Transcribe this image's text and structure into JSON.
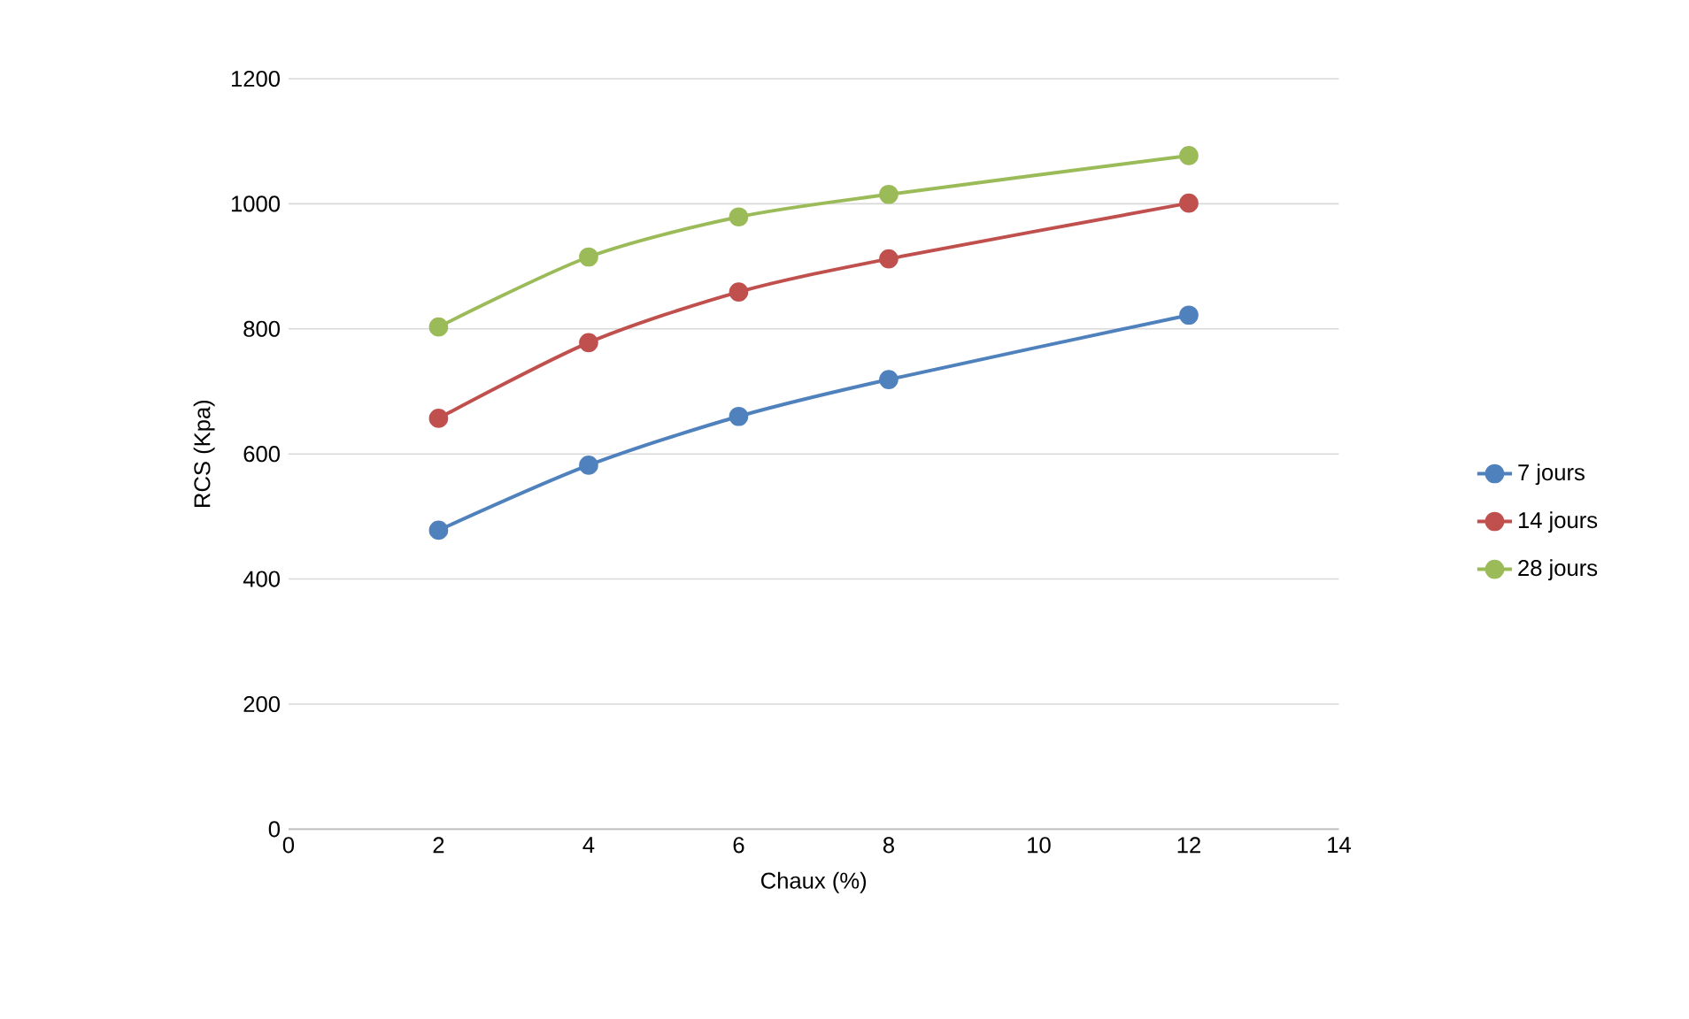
{
  "chart_data": {
    "type": "line",
    "xlabel": "Chaux (%)",
    "ylabel": "RCS (Kpa)",
    "x": [
      2,
      4,
      6,
      8,
      12
    ],
    "series": [
      {
        "name": "7 jours",
        "color": "#4f81bd",
        "values": [
          478,
          582,
          660,
          719,
          822
        ]
      },
      {
        "name": "14 jours",
        "color": "#c0504d",
        "values": [
          657,
          778,
          859,
          912,
          1001
        ]
      },
      {
        "name": "28 jours",
        "color": "#9bbb59",
        "values": [
          803,
          915,
          979,
          1015,
          1077
        ]
      }
    ],
    "xlim": [
      0,
      14
    ],
    "xticks": [
      0,
      2,
      4,
      6,
      8,
      10,
      12,
      14
    ],
    "ylim": [
      0,
      1200
    ],
    "yticks": [
      0,
      200,
      400,
      600,
      800,
      1000,
      1200
    ],
    "grid": "y",
    "legend": "right",
    "marker": "circle"
  }
}
